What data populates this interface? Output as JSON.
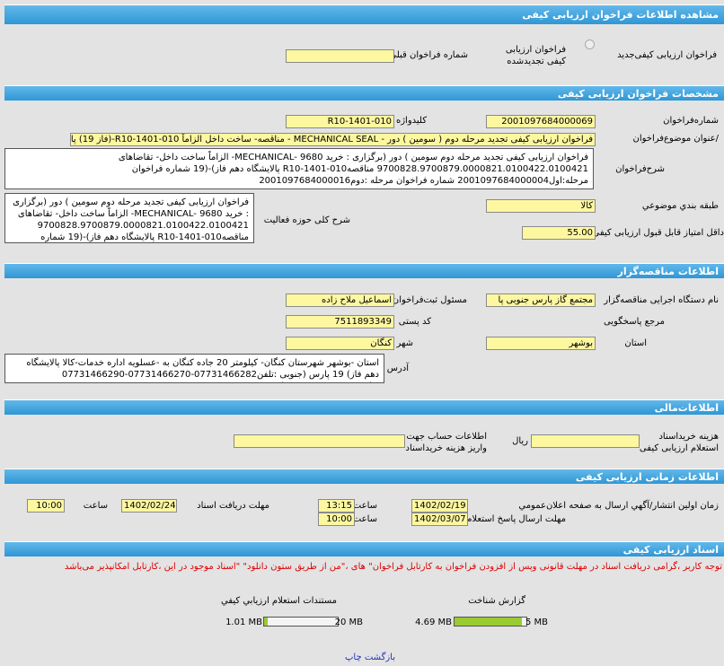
{
  "header": {
    "title": "مشاهده اطلاعات فراخوان ارزیابی کیفی"
  },
  "type_row": {
    "new_label": "فراخوان ارزیابی کیفی‌جدید",
    "renewed_label": "فراخوان ارزیابی کیفی تجدیدشده",
    "prev_number_label": "شماره فراخوان قبلی",
    "prev_number": ""
  },
  "spec": {
    "title": "مشخصات فراخوان ارزیابی کیفی",
    "number_label": "شماره‌فراخوان",
    "number": "2001097684000069",
    "keyword_label": "کلیدواژه",
    "keyword": "R10-1401-010",
    "subject_label": "/عنوان موضوع‌فراخوان",
    "subject": "فراخوان ارزیابی کیفی تجدید مرحله دوم ( سومین ) دور - MECHANICAL SEAL - مناقصه- ساخت داخل الزاماً R10-1401-010-(فاز 19) پالایشگاه دهم",
    "desc_label": "شرح‌فراخوان",
    "desc": "فراخوان ارزیابی کیفی تجدید مرحله دوم سومین ) دور (برگزاری : خرید MECHANICAL- 9680- الزاماً ساخت داخل- تقاضاهای 9700828.9700879.0000821.0100422.0100421 مناقصه‌R10-1401-010 پالایشگاه دهم فاز)-(19 شماره فراخوان مرحله:اول2001097684000004 شماره فراخوان مرحله :دوم2001097684000016",
    "category_label": "طبقه بندي موضوعي",
    "category": "کالا",
    "activity_label": "شرح کلی حوزه فعالیت",
    "activity": "فراخوان ارزیابی کیفی تجدید مرحله دوم سومین ) دور (برگزاری : خرید MECHANICAL- 9680- الزاماً ساخت داخل- تقاضاهای 9700828.9700879.0000821.0100422.0100421 مناقصه‌R10-1401-010 پالایشگاه دهم فاز)-(19 شماره فراخوان مرحله:اول2001097684000004 شماره فراخوان مرحله :دوم2001097684000016",
    "min_score_label": "داقل امتیاز قابل قبول ارزیابی کیفی",
    "min_score": "55.00"
  },
  "tenderer": {
    "title": "اطلاعات مناقصه‌گزار",
    "org_label": "نام دستگاه اجرایی مناقصه‌گزار",
    "org": "مجتمع گاز پارس جنوبی پا",
    "registrar_label": "مسئول ثبت‌فراخوان",
    "registrar": "اسماعیل ملاح زاده",
    "ref_label": "مرجع پاسخگویی",
    "postal_label": "کد پستی",
    "postal": "7511893349",
    "province_label": "استان",
    "province": "بوشهر",
    "city_label": "شهر",
    "city": "کنگان",
    "address_label": "آدرس",
    "address": "استان -بوشهر شهرستان کنگان- کیلومتر 20 جاده کنگان به -عسلویه اداره خدمات-کالا پالایشگاه دهم فاز) 19 پارس (جنوبی :تلفن07731466282-07731466270-07731466290 :فکس07731466273 :تایید07731466278"
  },
  "finance": {
    "title": "اطلاعات‌مالی",
    "fee_label": "هزینه خرید‌اسناد استعلام ارزیابی کیفی",
    "fee": "",
    "currency": "ریال",
    "account_label": "اطلاعات حساب جهت واریز هزینه خرید‌اسناد",
    "account": ""
  },
  "timing": {
    "title": "اطلاعات زمانی ارزیابی کیفی",
    "publish_label": "زمان اولین انتشار/آگهي ارسال به صفحه اعلان‌عمومي",
    "publish_date": "1402/02/19",
    "time_label": "ساعت",
    "publish_time": "13:15",
    "receive_label": "مهلت دریافت اسناد",
    "receive_date": "1402/02/24",
    "receive_time": "10:00",
    "reply_label": "مهلت ارسال پاسخ استعلام",
    "reply_date": "1402/03/07",
    "reply_time": "10:00"
  },
  "docs": {
    "title": "اسناد ارزیابی کیفی",
    "notice": "توجه کاربر ،گرامی دریافت اسناد در مهلت قانونی وپس از افزودن فراخوان به کارتابل فراخوان\" های ،\"من از طریق ستون دانلود\" \"اسناد موجود در این ،کارتابل امکانپذیر می‌باشد",
    "items": [
      {
        "label": "گزارش شناخت",
        "size": "4.69 MB",
        "max": "5 MB",
        "fill": 0.938
      },
      {
        "label": "مستندات استعلام ارزیابي کیفي",
        "size": "1.01 MB",
        "max": "20 MB",
        "fill": 0.05
      }
    ]
  },
  "footer": {
    "print": "چاپ",
    "back": "بازگشت"
  }
}
